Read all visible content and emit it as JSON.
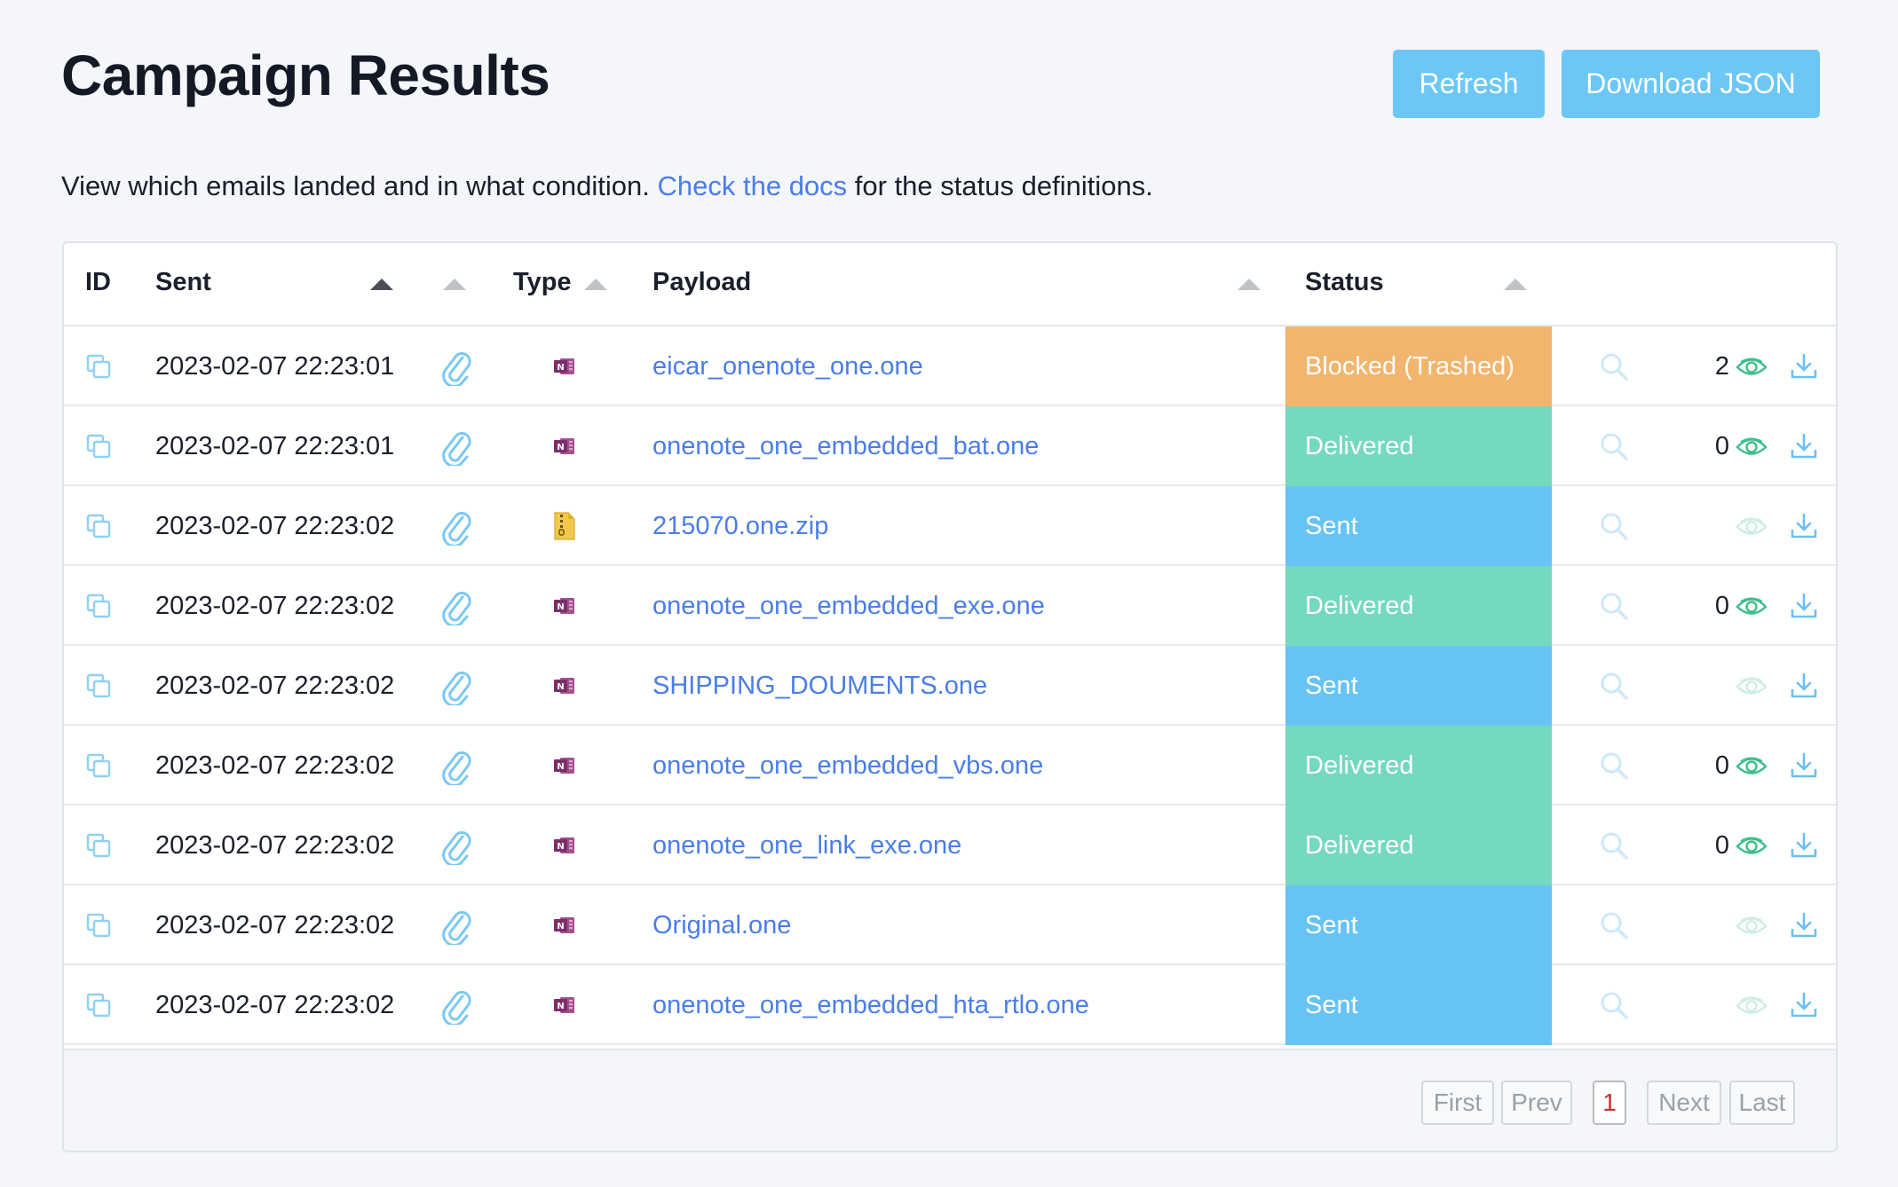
{
  "header": {
    "title": "Campaign Results",
    "refresh_label": "Refresh",
    "download_label": "Download JSON"
  },
  "subtitle": {
    "before": "View which emails landed and in what condition. ",
    "link": "Check the docs",
    "after": " for the status definitions."
  },
  "table": {
    "columns": {
      "id": "ID",
      "sent": "Sent",
      "type": "Type",
      "payload": "Payload",
      "status": "Status"
    },
    "rows": [
      {
        "sent": "2023-02-07 22:23:01",
        "type_icon": "onenote-icon",
        "payload": "eicar_onenote_one.one",
        "status": "Blocked (Trashed)",
        "status_kind": "blocked",
        "count": "2"
      },
      {
        "sent": "2023-02-07 22:23:01",
        "type_icon": "onenote-icon",
        "payload": "onenote_one_embedded_bat.one",
        "status": "Delivered",
        "status_kind": "delivered",
        "count": "0"
      },
      {
        "sent": "2023-02-07 22:23:02",
        "type_icon": "zip-icon",
        "payload": "215070.one.zip",
        "status": "Sent",
        "status_kind": "sent",
        "count": ""
      },
      {
        "sent": "2023-02-07 22:23:02",
        "type_icon": "onenote-icon",
        "payload": "onenote_one_embedded_exe.one",
        "status": "Delivered",
        "status_kind": "delivered",
        "count": "0"
      },
      {
        "sent": "2023-02-07 22:23:02",
        "type_icon": "onenote-icon",
        "payload": "SHIPPING_DOUMENTS.one",
        "status": "Sent",
        "status_kind": "sent",
        "count": ""
      },
      {
        "sent": "2023-02-07 22:23:02",
        "type_icon": "onenote-icon",
        "payload": "onenote_one_embedded_vbs.one",
        "status": "Delivered",
        "status_kind": "delivered",
        "count": "0"
      },
      {
        "sent": "2023-02-07 22:23:02",
        "type_icon": "onenote-icon",
        "payload": "onenote_one_link_exe.one",
        "status": "Delivered",
        "status_kind": "delivered",
        "count": "0"
      },
      {
        "sent": "2023-02-07 22:23:02",
        "type_icon": "onenote-icon",
        "payload": "Original.one",
        "status": "Sent",
        "status_kind": "sent",
        "count": ""
      },
      {
        "sent": "2023-02-07 22:23:02",
        "type_icon": "onenote-icon",
        "payload": "onenote_one_embedded_hta_rtlo.one",
        "status": "Sent",
        "status_kind": "sent",
        "count": ""
      }
    ]
  },
  "pagination": {
    "first": "First",
    "prev": "Prev",
    "current": "1",
    "next": "Next",
    "last": "Last"
  },
  "colors": {
    "accent_button": "#6cc7f7",
    "link": "#4b7de8",
    "status_blocked": "#f2b56e",
    "status_delivered": "#75d8c1",
    "status_sent": "#67c3f6",
    "onenote": "#7b2e6a",
    "zip": "#f2c84b"
  }
}
